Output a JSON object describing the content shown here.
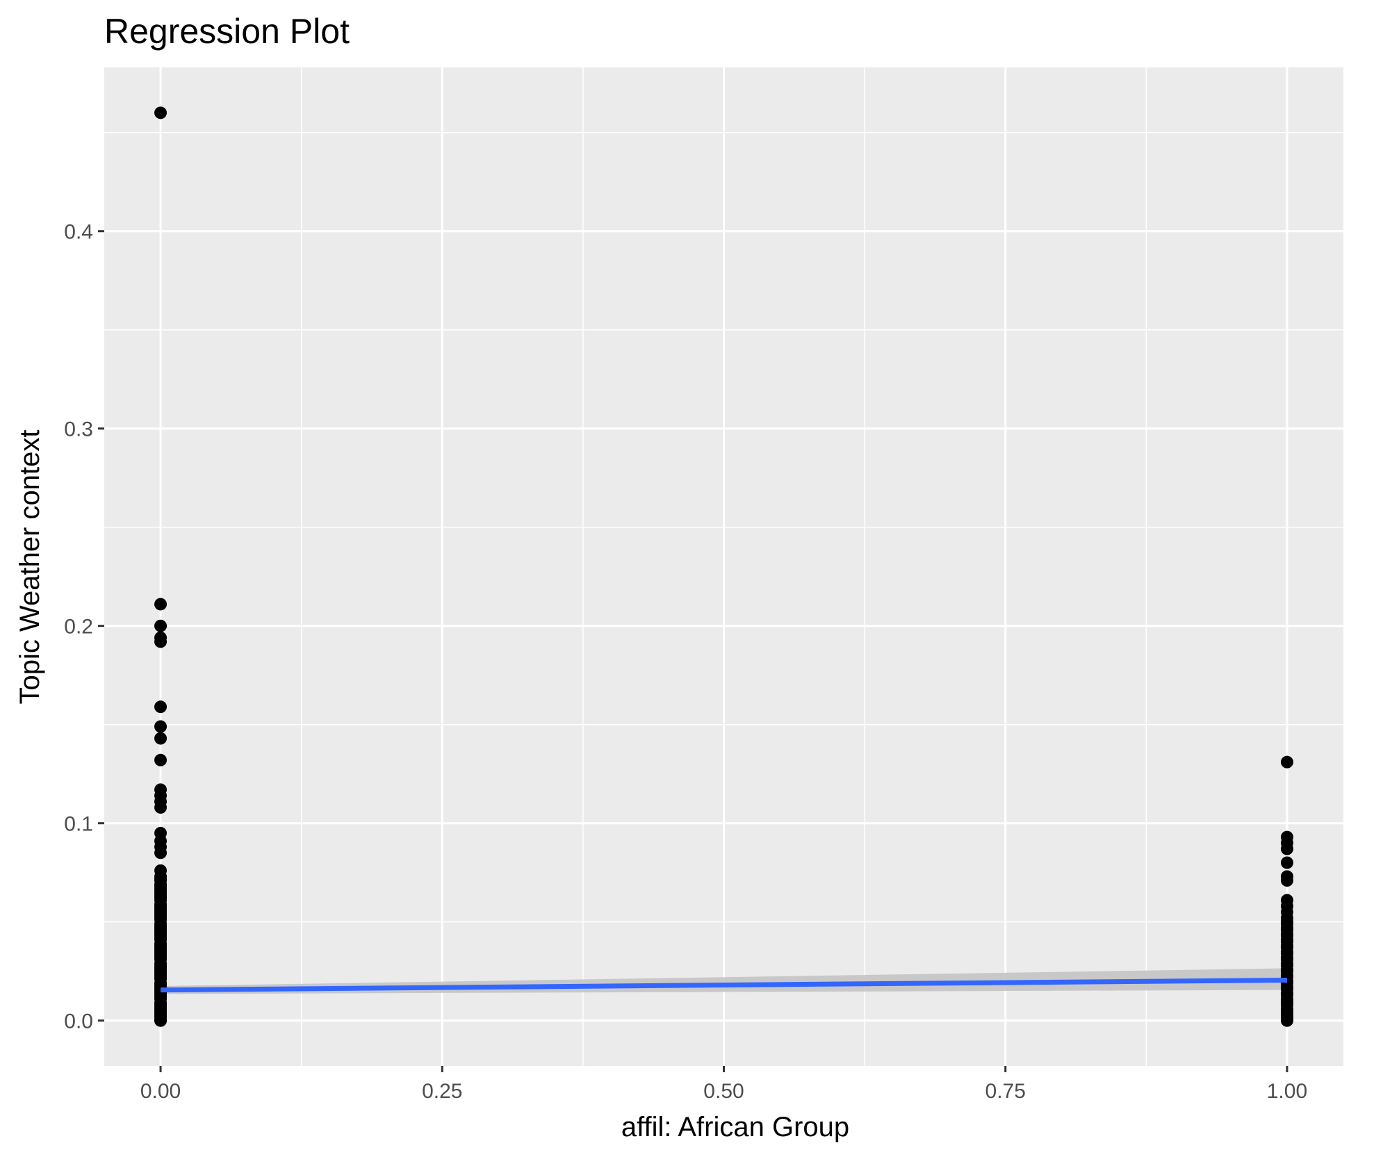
{
  "chart_data": {
    "type": "scatter",
    "title": "Regression Plot",
    "xlabel": "affil: African Group",
    "ylabel": "Topic Weather context",
    "xlim": [
      -0.05,
      1.05
    ],
    "ylim": [
      -0.023,
      0.483
    ],
    "x_ticks": [
      0.0,
      0.25,
      0.5,
      0.75,
      1.0
    ],
    "x_tick_labels": [
      "0.00",
      "0.25",
      "0.50",
      "0.75",
      "1.00"
    ],
    "y_ticks": [
      0.0,
      0.1,
      0.2,
      0.3,
      0.4
    ],
    "y_tick_labels": [
      "0.0",
      "0.1",
      "0.2",
      "0.3",
      "0.4"
    ],
    "grid": true,
    "background": "#ebebeb",
    "point_color": "#000000",
    "line_color": "#3366ff",
    "band_color": "#c4c4c4",
    "series": [
      {
        "x": [
          0,
          0,
          0,
          0,
          0,
          0,
          0,
          0,
          0,
          0,
          0,
          0,
          0,
          0,
          0,
          0,
          0,
          0,
          0,
          0,
          0,
          0,
          0,
          0,
          0,
          0,
          0,
          0,
          0,
          0,
          0,
          0,
          0,
          0,
          0,
          0,
          0,
          0,
          0,
          0,
          0,
          0,
          0,
          0,
          0,
          0,
          0,
          0,
          0,
          0,
          0,
          0,
          0,
          0,
          0,
          0,
          0,
          0,
          0,
          0,
          0,
          0,
          0,
          0,
          0,
          0,
          0,
          0,
          0,
          0,
          0,
          0,
          0,
          0,
          0,
          0,
          0,
          0,
          0,
          0,
          0,
          0,
          0,
          0,
          0,
          0
        ],
        "y": [
          0.46,
          0.211,
          0.2,
          0.194,
          0.192,
          0.159,
          0.149,
          0.143,
          0.132,
          0.117,
          0.114,
          0.111,
          0.108,
          0.095,
          0.091,
          0.088,
          0.085,
          0.076,
          0.073,
          0.071,
          0.069,
          0.067,
          0.065,
          0.063,
          0.061,
          0.059,
          0.057,
          0.055,
          0.053,
          0.051,
          0.049,
          0.047,
          0.045,
          0.043,
          0.041,
          0.039,
          0.037,
          0.035,
          0.033,
          0.031,
          0.029,
          0.027,
          0.025,
          0.023,
          0.021,
          0.019,
          0.017,
          0.015,
          0.013,
          0.011,
          0.009,
          0.007,
          0.005,
          0.003,
          0.002,
          0.001,
          0.0,
          0.056,
          0.036,
          0.026,
          0.016,
          0.006,
          0.046,
          0.038,
          0.028,
          0.018,
          0.008,
          0.044,
          0.034,
          0.024,
          0.014,
          0.004,
          0.042,
          0.032,
          0.022,
          0.012,
          0.052,
          0.048,
          0.062,
          0.058,
          0.066,
          0.068,
          0.072,
          0.054,
          0.064,
          0.0
        ]
      },
      {
        "x": [
          1,
          1,
          1,
          1,
          1,
          1,
          1,
          1,
          1,
          1,
          1,
          1,
          1,
          1,
          1,
          1,
          1,
          1,
          1,
          1,
          1,
          1,
          1,
          1,
          1,
          1,
          1,
          1,
          1,
          1,
          1,
          1,
          1,
          1,
          1,
          1,
          1,
          1,
          1,
          1,
          1,
          1,
          1,
          1,
          1,
          1,
          1,
          1,
          1
        ],
        "y": [
          0.131,
          0.093,
          0.09,
          0.087,
          0.08,
          0.073,
          0.071,
          0.061,
          0.058,
          0.055,
          0.052,
          0.049,
          0.046,
          0.043,
          0.04,
          0.037,
          0.034,
          0.031,
          0.028,
          0.025,
          0.022,
          0.019,
          0.016,
          0.013,
          0.01,
          0.008,
          0.006,
          0.004,
          0.002,
          0.001,
          0.0,
          0.047,
          0.041,
          0.035,
          0.029,
          0.023,
          0.017,
          0.011,
          0.005,
          0.05,
          0.044,
          0.038,
          0.032,
          0.026,
          0.02,
          0.014,
          0.009,
          0.003,
          0.0
        ]
      }
    ],
    "regression": {
      "x": [
        0,
        1
      ],
      "y": [
        0.0155,
        0.0205
      ],
      "ci_lower": [
        0.0135,
        0.0155
      ],
      "ci_upper": [
        0.0175,
        0.0265
      ]
    }
  }
}
